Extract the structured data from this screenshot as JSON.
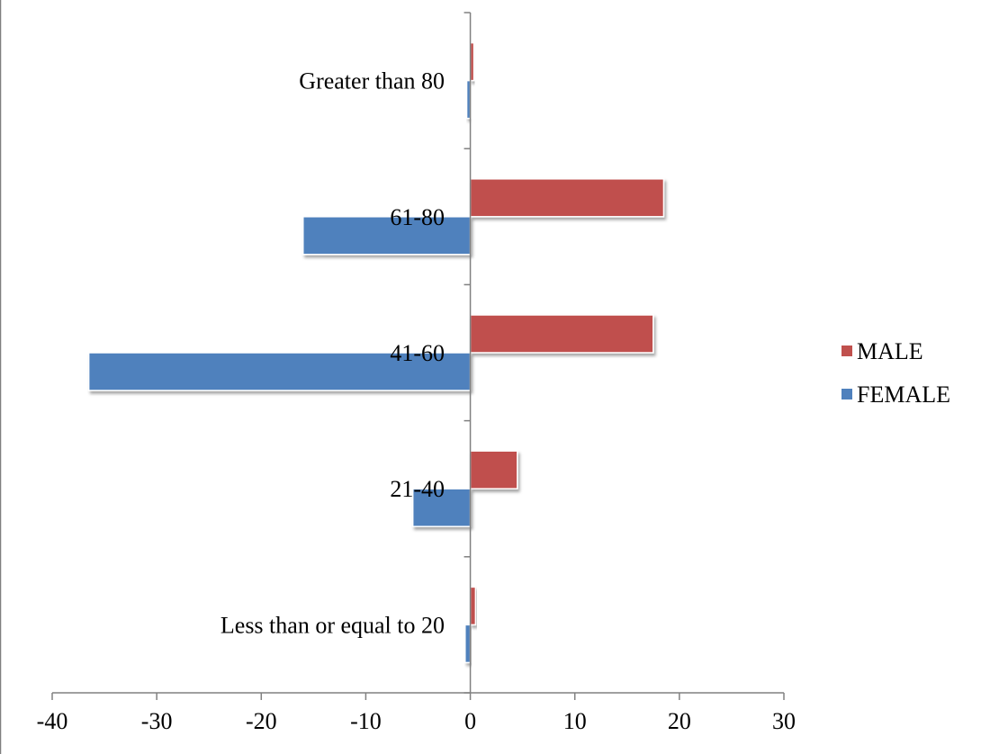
{
  "chart_data": {
    "type": "bar",
    "orientation": "horizontal",
    "title": "",
    "xlabel": "",
    "ylabel": "",
    "categories": [
      "Less than or equal to 20",
      "21-40",
      "41-60",
      "61-80",
      "Greater than 80"
    ],
    "series": [
      {
        "name": "MALE",
        "color": "#C0504D",
        "values": [
          0.5,
          4.5,
          17.5,
          18.5,
          0.3
        ]
      },
      {
        "name": "FEMALE",
        "color": "#4F81BD",
        "values": [
          -0.5,
          -5.5,
          -36.5,
          -16,
          -0.3
        ]
      }
    ],
    "xlim": [
      -40,
      30
    ],
    "xticks": [
      "-40",
      "-30",
      "-20",
      "-10",
      "0",
      "10",
      "20",
      "30"
    ],
    "grid": false,
    "legend_position": "right"
  }
}
